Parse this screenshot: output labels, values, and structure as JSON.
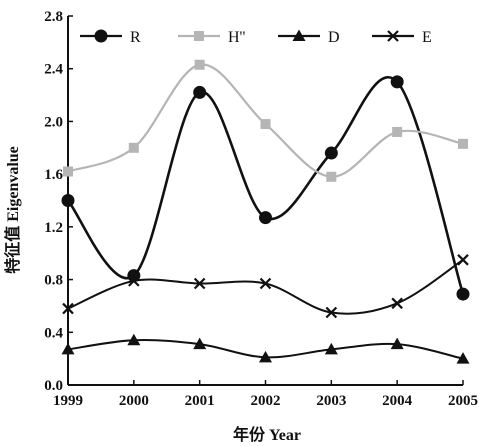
{
  "chart_data": {
    "type": "line",
    "title": "",
    "xlabel": "年份 Year",
    "ylabel": "特征值 Eigenvalue",
    "ylim": [
      0.0,
      2.8
    ],
    "yticks": [
      "0.0",
      "0.4",
      "0.8",
      "1.2",
      "1.6",
      "2.0",
      "2.4",
      "2.8"
    ],
    "x": [
      "1999",
      "2000",
      "2001",
      "2002",
      "2003",
      "2004",
      "2005"
    ],
    "grid": false,
    "legend_position": "top",
    "series": [
      {
        "name": "R",
        "values": [
          1.4,
          0.83,
          2.22,
          1.27,
          1.76,
          2.3,
          0.69
        ],
        "color": "#111111",
        "marker": "circle"
      },
      {
        "name": "H''",
        "values": [
          1.62,
          1.8,
          2.43,
          1.98,
          1.58,
          1.92,
          1.83
        ],
        "color": "#b5b5b5",
        "marker": "square"
      },
      {
        "name": "D",
        "values": [
          0.27,
          0.34,
          0.31,
          0.21,
          0.27,
          0.31,
          0.2
        ],
        "color": "#111111",
        "marker": "triangle"
      },
      {
        "name": "E",
        "values": [
          0.58,
          0.79,
          0.77,
          0.77,
          0.55,
          0.62,
          0.95
        ],
        "color": "#111111",
        "marker": "x"
      }
    ]
  }
}
